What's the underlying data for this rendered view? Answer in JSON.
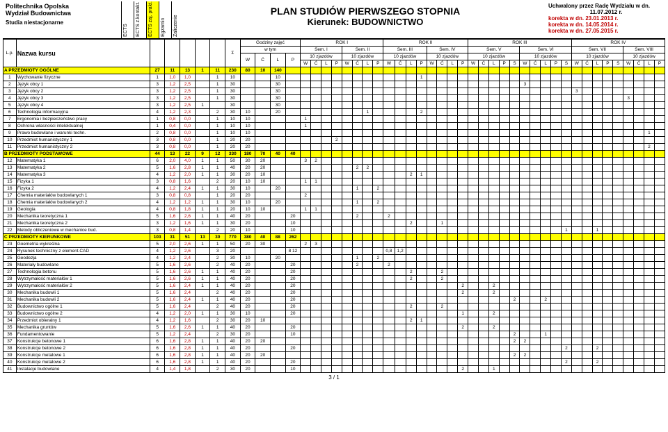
{
  "header": {
    "uni": "Politechnika Opolska",
    "dept": "Wydział Budownictwa",
    "mode": "Studia niestacjonarne",
    "title1": "PLAN STUDIÓW PIERWSZEGO STOPNIA",
    "title2": "Kierunek:  BUDOWNICTWO",
    "appr": "Uchwalony przez Radę Wydziału w dn.",
    "date": "11.07.2012 r.",
    "k1": "korekta w dn. 23.01.2013 r.",
    "k2": "korekta w dn. 14.05.2014 r.",
    "k3": "korekta w dn. 27.05.2015 r.",
    "vcols": [
      "ECTS",
      "ECTS z.kontakt.",
      "ECTS zaj. prakt.",
      "Egzamin",
      "Zaliczenie"
    ],
    "gz": "Godziny zajęć",
    "wtym": "w tym",
    "rok": [
      "ROK I",
      "ROK II",
      "ROK III",
      "ROK IV"
    ],
    "sem": [
      "Sem. I",
      "Sem. II",
      "Sem. III",
      "Sem. IV",
      "Sem. V",
      "Sem. VI",
      "Sem. VII",
      "Sem. VIII"
    ],
    "zj": "10 zjazdów",
    "nk": "Nazwa kursu",
    "lp": "L.p.",
    "sum": "Σ",
    "cols": [
      "W",
      "Ć",
      "L",
      "P",
      "S"
    ]
  },
  "footer": "3 / 1",
  "colors": {
    "yellow": "#ffff00",
    "red": "#c00000"
  },
  "sections": [
    {
      "label": "A  PRZEDMIOTY OGÓLNE",
      "tot": [
        "27",
        "11",
        "13",
        "1",
        "11",
        "230",
        "80",
        "10",
        "140"
      ],
      "rows": [
        {
          "lp": "1",
          "name": "Wychowanie fizyczne",
          "c": [
            "1",
            "1,0",
            "1,0",
            "",
            "1",
            "10",
            "",
            "",
            "10"
          ],
          "m": {
            "33": "1"
          }
        },
        {
          "lp": "2",
          "name": "Język obcy 1",
          "c": [
            "3",
            "1,2",
            "2,5",
            "",
            "1",
            "30",
            "",
            "",
            "30"
          ],
          "m": {
            "43": "3"
          }
        },
        {
          "lp": "3",
          "name": "Język obcy 2",
          "c": [
            "3",
            "1,2",
            "2,5",
            "",
            "1",
            "30",
            "",
            "",
            "30"
          ],
          "m": {
            "48": "3"
          }
        },
        {
          "lp": "4",
          "name": "Język obcy 3",
          "c": [
            "3",
            "1,2",
            "2,5",
            "",
            "1",
            "30",
            "",
            "",
            "30"
          ],
          "m": {
            "53": "3"
          }
        },
        {
          "lp": "5",
          "name": "Język obcy 4",
          "c": [
            "3",
            "1,2",
            "2,5",
            "1",
            "",
            "30",
            "",
            "",
            "30"
          ],
          "m": {
            "58": "3"
          }
        },
        {
          "lp": "6",
          "name": "Technologia informacyjna",
          "c": [
            "4",
            "1,2",
            "2,3",
            "",
            "2",
            "30",
            "10",
            "",
            "20"
          ],
          "m": {
            "28": "1",
            "33": "2"
          }
        },
        {
          "lp": "7",
          "name": "Ergonomia i bezpieczeństwo pracy",
          "c": [
            "1",
            "0,8",
            "0,0",
            "",
            "1",
            "10",
            "10",
            "",
            ""
          ],
          "m": {
            "22": "1"
          }
        },
        {
          "lp": "8",
          "name": "Ochrona własności intelektualnej",
          "c": [
            "1",
            "0,4",
            "0,0",
            "",
            "1",
            "10",
            "10",
            "",
            ""
          ],
          "m": {
            "22": "1"
          }
        },
        {
          "lp": "9",
          "name": "Prawo budowlane i warunki techn.",
          "c": [
            "2",
            "0,8",
            "0,0",
            "",
            "1",
            "10",
            "10",
            "",
            ""
          ],
          "m": {
            "55": "1"
          }
        },
        {
          "lp": "10",
          "name": "Przedmiot humanistyczny 1",
          "c": [
            "3",
            "0,8",
            "0,0",
            "",
            "1",
            "20",
            "20",
            "",
            ""
          ],
          "m": {
            "25": "2"
          }
        },
        {
          "lp": "11",
          "name": "Przedmiot humanistyczny 2",
          "c": [
            "3",
            "0,8",
            "0,0",
            "",
            "1",
            "20",
            "20",
            "",
            ""
          ],
          "m": {
            "55": "2"
          }
        }
      ]
    },
    {
      "label": "B  PRZEDMIOTY PODSTAWOWE",
      "tot": [
        "44",
        "13",
        "22",
        "9",
        "12",
        "330",
        "180",
        "70",
        "40",
        "40"
      ],
      "rows": [
        {
          "lp": "12",
          "name": "Matematyka 1",
          "c": [
            "6",
            "2,0",
            "4,0",
            "1",
            "1",
            "50",
            "30",
            "20",
            ""
          ],
          "m": {
            "22": "3",
            "23": "2"
          }
        },
        {
          "lp": "13",
          "name": "Matematyka 2",
          "c": [
            "5",
            "1,6",
            "2,8",
            "1",
            "1",
            "40",
            "20",
            "20",
            ""
          ],
          "m": {
            "27": "2",
            "28": "2"
          }
        },
        {
          "lp": "14",
          "name": "Matematyka 3",
          "c": [
            "4",
            "1,2",
            "2,0",
            "1",
            "1",
            "30",
            "20",
            "10",
            ""
          ],
          "m": {
            "32": "2",
            "33": "1"
          }
        },
        {
          "lp": "15",
          "name": "Fizyka 1",
          "c": [
            "3",
            "0,8",
            "1,6",
            "",
            "2",
            "20",
            "10",
            "10",
            ""
          ],
          "m": {
            "22": "1",
            "23": "1"
          }
        },
        {
          "lp": "16",
          "name": "Fizyka 2",
          "c": [
            "4",
            "1,2",
            "2,4",
            "1",
            "1",
            "30",
            "10",
            "",
            "20"
          ],
          "m": {
            "27": "1",
            "29": "2"
          }
        },
        {
          "lp": "17",
          "name": "Chemia materiałów budowlanych 1",
          "c": [
            "3",
            "0,8",
            "0,8",
            "",
            "1",
            "20",
            "20",
            "",
            ""
          ],
          "m": {
            "22": "2"
          }
        },
        {
          "lp": "18",
          "name": "Chemia materiałów budowlanych 2",
          "c": [
            "4",
            "1,2",
            "1,2",
            "1",
            "1",
            "30",
            "10",
            "",
            "20"
          ],
          "m": {
            "27": "1",
            "29": "2"
          }
        },
        {
          "lp": "19",
          "name": "Geologia",
          "c": [
            "4",
            "0,8",
            "1,8",
            "1",
            "1",
            "20",
            "10",
            "10",
            ""
          ],
          "m": {
            "22": "1",
            "23": "1"
          }
        },
        {
          "lp": "20",
          "name": "Mechanika teoretyczna 1",
          "c": [
            "5",
            "1,6",
            "2,6",
            "1",
            "1",
            "40",
            "20",
            "",
            "",
            "20"
          ],
          "m": {
            "27": "2",
            "30": "2"
          }
        },
        {
          "lp": "21",
          "name": "Mechanika teoretyczna 2",
          "c": [
            "3",
            "1,2",
            "1,6",
            "1",
            "1",
            "30",
            "20",
            "",
            "",
            "10"
          ],
          "m": {
            "32": "2",
            "35": "1"
          }
        },
        {
          "lp": "22",
          "name": "Metody obliczeniowe w mechanice bud.",
          "c": [
            "3",
            "0,8",
            "1,4",
            "",
            "2",
            "20",
            "10",
            "",
            "",
            "10"
          ],
          "m": {
            "47": "1",
            "50": "1"
          }
        }
      ]
    },
    {
      "label": "C  PRZEDMIOTY KIERUNKOWE",
      "tot": [
        "103",
        "31",
        "51",
        "13",
        "30",
        "770",
        "380",
        "40",
        "88",
        "262"
      ],
      "rows": [
        {
          "lp": "23",
          "name": "Goemetria wykreślna",
          "c": [
            "5",
            "2,0",
            "2,6",
            "1",
            "1",
            "50",
            "20",
            "30",
            ""
          ],
          "m": {
            "22": "2",
            "23": "3"
          }
        },
        {
          "lp": "24",
          "name": "Rysunek techniczny z element.CAD",
          "c": [
            "4",
            "1,2",
            "2,6",
            "",
            "3",
            "20",
            "",
            "",
            "",
            "8 12"
          ],
          "m": {
            "30": "0,8",
            "31": "1,2"
          }
        },
        {
          "lp": "25",
          "name": "Geodezja",
          "c": [
            "4",
            "1,2",
            "2,4",
            "",
            "2",
            "30",
            "10",
            "",
            "20"
          ],
          "m": {
            "27": "1",
            "29": "2"
          }
        },
        {
          "lp": "26",
          "name": "Materiały budowlane",
          "c": [
            "5",
            "1,6",
            "2,6",
            "",
            "2",
            "40",
            "20",
            "",
            "",
            "20"
          ],
          "m": {
            "27": "2",
            "30": "2"
          }
        },
        {
          "lp": "27",
          "name": "Technologia betonu",
          "c": [
            "5",
            "1,6",
            "2,6",
            "1",
            "1",
            "40",
            "20",
            "",
            "",
            "20"
          ],
          "m": {
            "32": "2",
            "35": "2"
          }
        },
        {
          "lp": "28",
          "name": "Wytrzymałość materiałów 1",
          "c": [
            "5",
            "1,6",
            "2,6",
            "1",
            "1",
            "40",
            "20",
            "",
            "",
            "20"
          ],
          "m": {
            "32": "2",
            "35": "2"
          }
        },
        {
          "lp": "29",
          "name": "Wytrzymałość materiałów 2",
          "c": [
            "5",
            "1,6",
            "2,4",
            "1",
            "1",
            "40",
            "20",
            "",
            "",
            "20"
          ],
          "m": {
            "37": "2",
            "40": "2"
          }
        },
        {
          "lp": "30",
          "name": "Mechanika budowli 1",
          "c": [
            "5",
            "1,6",
            "2,4",
            "",
            "2",
            "40",
            "20",
            "",
            "",
            "20"
          ],
          "m": {
            "37": "2",
            "40": "2"
          }
        },
        {
          "lp": "31",
          "name": "Mechanika budowli 2",
          "c": [
            "5",
            "1,6",
            "2,4",
            "1",
            "1",
            "40",
            "20",
            "",
            "",
            "20"
          ],
          "m": {
            "42": "2",
            "45": "2"
          }
        },
        {
          "lp": "32",
          "name": "Budownictwo ogólne 1",
          "c": [
            "5",
            "1,6",
            "2,4",
            "",
            "2",
            "40",
            "20",
            "",
            "",
            "20"
          ],
          "m": {
            "32": "2",
            "35": "2"
          }
        },
        {
          "lp": "33",
          "name": "Budownictwo ogólne 2",
          "c": [
            "4",
            "1,2",
            "2,0",
            "1",
            "1",
            "30",
            "10",
            "",
            "",
            "20"
          ],
          "m": {
            "37": "1",
            "40": "2"
          }
        },
        {
          "lp": "34",
          "name": "Przedmiot obieralny 1",
          "c": [
            "4",
            "1,2",
            "1,6",
            "",
            "2",
            "30",
            "20",
            "10",
            ""
          ],
          "m": {
            "32": "2",
            "33": "1"
          }
        },
        {
          "lp": "35",
          "name": "Mechanika gruntów",
          "c": [
            "5",
            "1,6",
            "2,6",
            "1",
            "1",
            "40",
            "20",
            "",
            "",
            "20"
          ],
          "m": {
            "37": "2",
            "40": "2"
          }
        },
        {
          "lp": "36",
          "name": "Fundamentowanie",
          "c": [
            "5",
            "1,2",
            "2,4",
            "",
            "2",
            "30",
            "20",
            "",
            "",
            "10"
          ],
          "m": {
            "42": "2",
            "45": "1"
          }
        },
        {
          "lp": "37",
          "name": "Konstrukcje betonowe 1",
          "c": [
            "6",
            "1,6",
            "2,8",
            "1",
            "1",
            "40",
            "20",
            "20",
            ""
          ],
          "m": {
            "42": "2",
            "43": "2"
          }
        },
        {
          "lp": "38",
          "name": "Konstrukcje betonowe 2",
          "c": [
            "6",
            "1,6",
            "2,8",
            "1",
            "1",
            "40",
            "20",
            "",
            "",
            "20"
          ],
          "m": {
            "47": "2",
            "50": "2"
          }
        },
        {
          "lp": "39",
          "name": "Konstrukcje metalowe 1",
          "c": [
            "6",
            "1,6",
            "2,8",
            "1",
            "1",
            "40",
            "20",
            "20",
            ""
          ],
          "m": {
            "42": "2",
            "43": "2"
          }
        },
        {
          "lp": "40",
          "name": "Konstrukcje metalowe 2",
          "c": [
            "6",
            "1,6",
            "2,8",
            "1",
            "1",
            "40",
            "20",
            "",
            "",
            "20"
          ],
          "m": {
            "47": "2",
            "50": "2"
          }
        },
        {
          "lp": "41",
          "name": "Instalacje budowlane",
          "c": [
            "4",
            "1,4",
            "1,8",
            "",
            "2",
            "30",
            "20",
            "",
            "",
            "10"
          ],
          "m": {
            "37": "2",
            "40": "1"
          }
        }
      ]
    }
  ]
}
